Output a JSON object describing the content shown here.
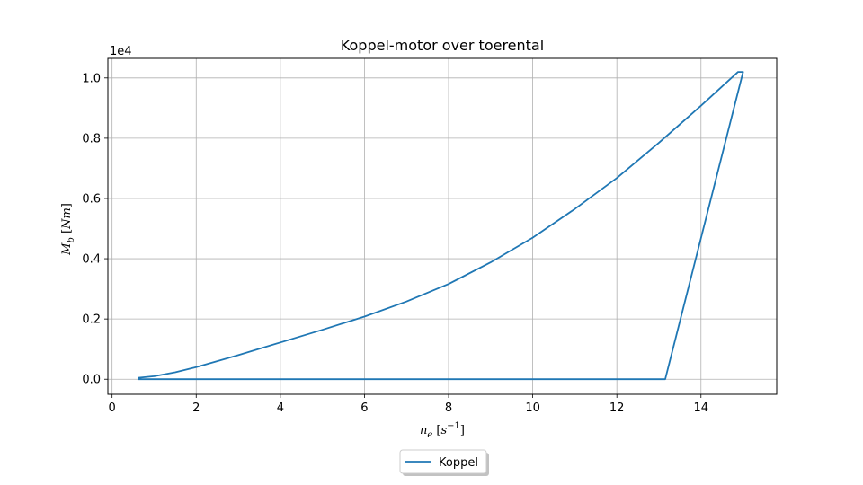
{
  "chart_data": {
    "type": "line",
    "title": "Koppel-motor over toerental",
    "xlabel": {
      "var": "n",
      "sub": "e",
      "unit_base": "s",
      "unit_exp": "−1"
    },
    "ylabel": {
      "var": "M",
      "sub": "b",
      "unit": "Nm"
    },
    "y_offset_text": "1e4",
    "xlim": [
      -0.1,
      15.8
    ],
    "ylim": [
      -500,
      10650
    ],
    "x_ticks": [
      0,
      2,
      4,
      6,
      8,
      10,
      12,
      14
    ],
    "x_tick_labels": [
      "0",
      "2",
      "4",
      "6",
      "8",
      "10",
      "12",
      "14"
    ],
    "y_ticks": [
      0,
      2000,
      4000,
      6000,
      8000,
      10000
    ],
    "y_tick_labels": [
      "0.0",
      "0.2",
      "0.4",
      "0.6",
      "0.8",
      "1.0"
    ],
    "grid": true,
    "legend_position": "below-center",
    "series": [
      {
        "name": "Koppel",
        "color": "#1f77b4",
        "x": [
          0.62,
          1.0,
          1.5,
          2.0,
          3.0,
          4.0,
          5.0,
          6.0,
          7.0,
          8.0,
          9.0,
          10.0,
          11.0,
          12.0,
          13.0,
          14.0,
          14.88,
          15.0,
          13.15,
          10.0,
          5.0,
          0.62
        ],
        "y": [
          50,
          100,
          230,
          400,
          800,
          1220,
          1640,
          2080,
          2580,
          3160,
          3880,
          4700,
          5650,
          6680,
          7850,
          9080,
          10200,
          10200,
          0,
          0,
          0,
          0
        ]
      }
    ]
  }
}
